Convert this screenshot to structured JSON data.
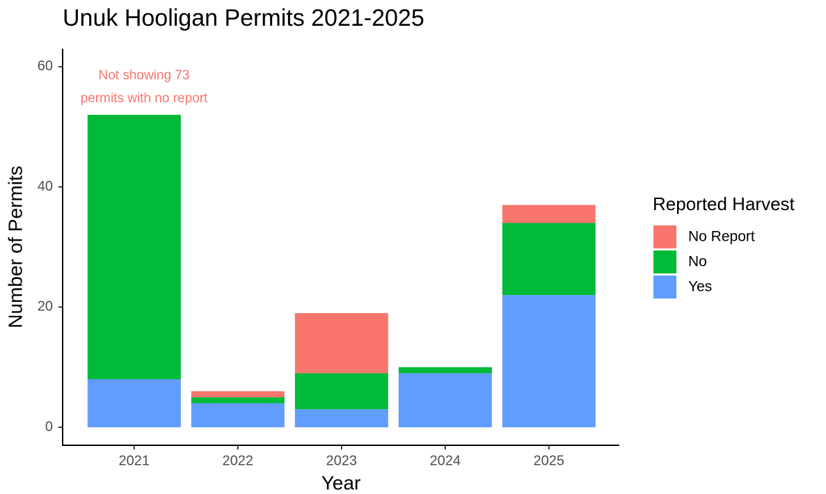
{
  "chart_data": {
    "type": "stacked_bar",
    "title": "Unuk Hooligan Permits 2021-2025",
    "x_label": "Year",
    "y_label": "Number of Permits",
    "categories": [
      "2021",
      "2022",
      "2023",
      "2024",
      "2025"
    ],
    "series": [
      {
        "name": "Yes",
        "color": "#619cff",
        "values": [
          8,
          4,
          3,
          9,
          22
        ]
      },
      {
        "name": "No",
        "color": "#00ba38",
        "values": [
          44,
          1,
          6,
          1,
          12
        ]
      },
      {
        "name": "No Report",
        "color": "#f8766d",
        "values": [
          0,
          1,
          10,
          0,
          3
        ]
      }
    ],
    "legend_title": "Reported Harvest",
    "annotation": {
      "lines": [
        "Not showing 73",
        "permits with no report"
      ],
      "color": "#f8766d"
    },
    "ylim": [
      -3,
      63
    ],
    "yticks": [
      0,
      20,
      40,
      60
    ]
  }
}
